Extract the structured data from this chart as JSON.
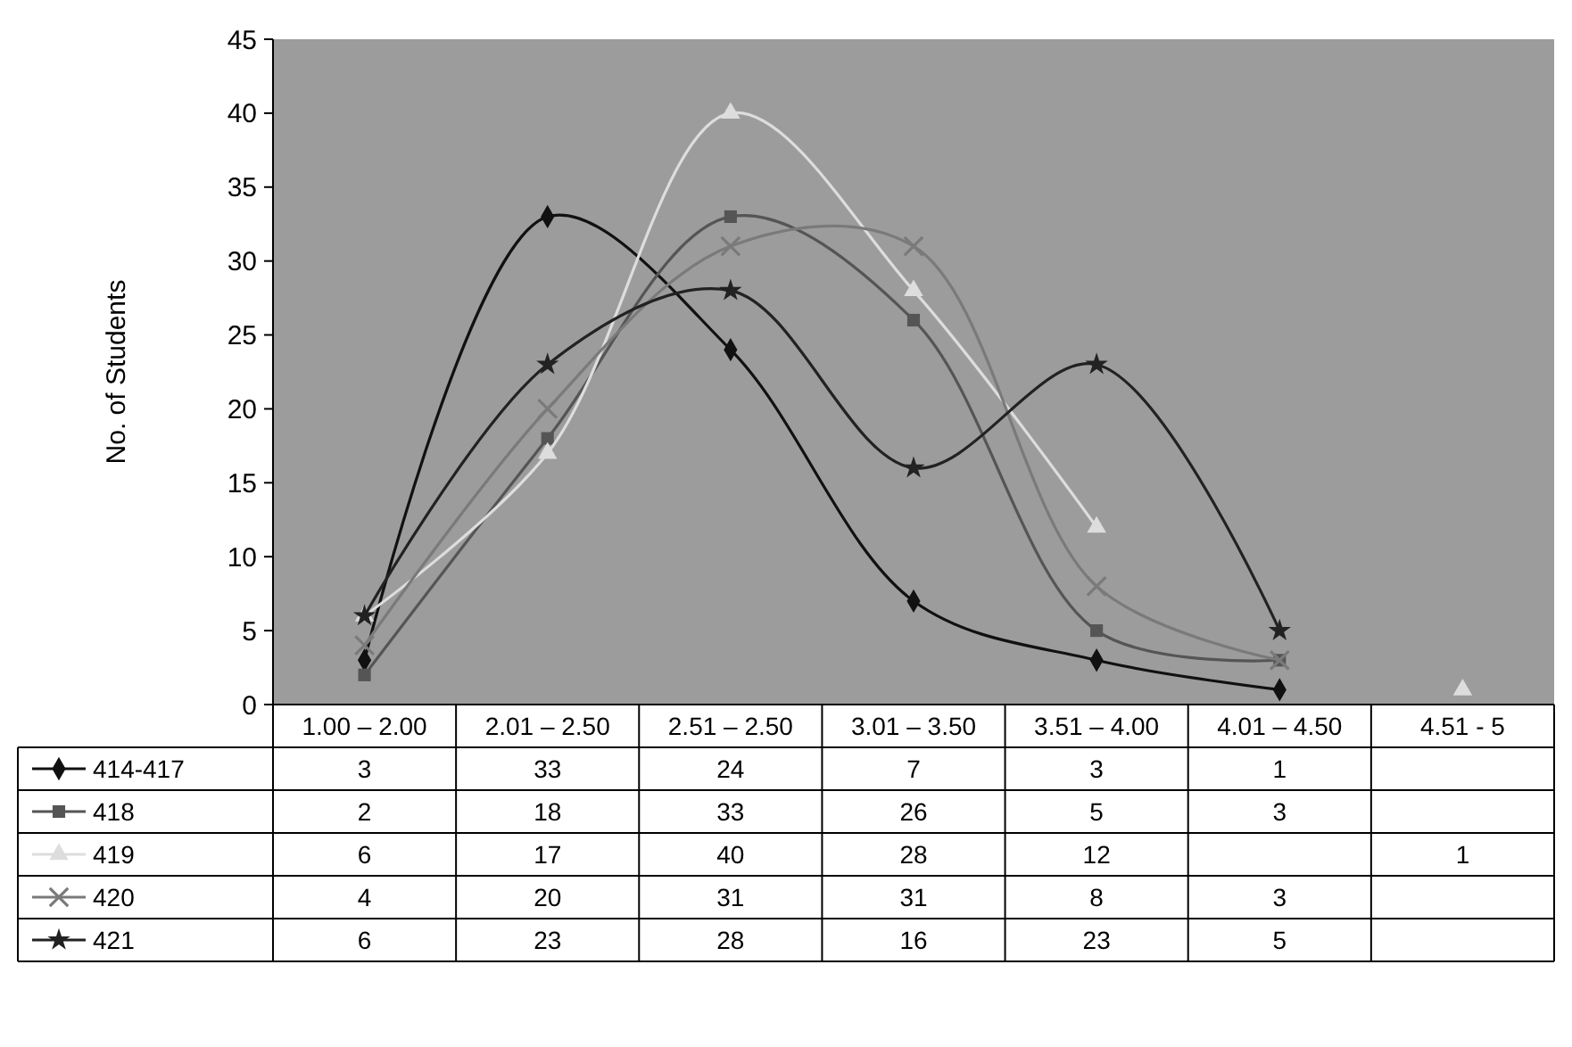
{
  "chart_data": {
    "type": "line",
    "ylabel": "No. of Students",
    "categories": [
      "1.00 – 2.00",
      "2.01 – 2.50",
      "2.51 – 2.50",
      "3.01 – 3.50",
      "3.51 – 4.00",
      "4.01 – 4.50",
      "4.51 - 5"
    ],
    "series": [
      {
        "name": "414-417",
        "color": "#111111",
        "marker": "diamond",
        "values": [
          3,
          33,
          24,
          7,
          3,
          1,
          null
        ]
      },
      {
        "name": "418",
        "color": "#555555",
        "marker": "square",
        "values": [
          2,
          18,
          33,
          26,
          5,
          3,
          null
        ]
      },
      {
        "name": "419",
        "color": "#dddddd",
        "marker": "triangle",
        "values": [
          6,
          17,
          40,
          28,
          12,
          null,
          1
        ]
      },
      {
        "name": "420",
        "color": "#7a7a7a",
        "marker": "cross",
        "values": [
          4,
          20,
          31,
          31,
          8,
          3,
          null
        ]
      },
      {
        "name": "421",
        "color": "#222222",
        "marker": "star",
        "values": [
          6,
          23,
          28,
          16,
          23,
          5,
          null
        ]
      }
    ],
    "ylim": [
      0,
      45
    ],
    "yticks": [
      0,
      5,
      10,
      15,
      20,
      25,
      30,
      35,
      40,
      45
    ],
    "grid": false,
    "legend": "bottom",
    "data_labels": true
  }
}
